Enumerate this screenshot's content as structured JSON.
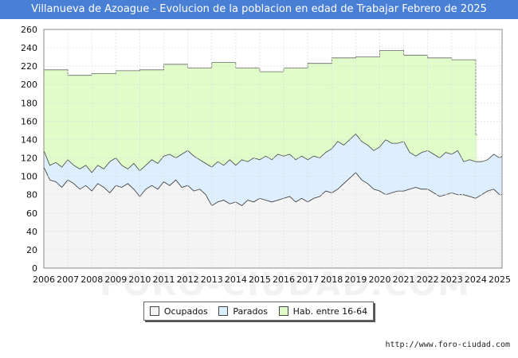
{
  "chart_data": {
    "type": "area",
    "title": "Villanueva de Azoague - Evolucion de la poblacion en edad de Trabajar Febrero de 2025",
    "xlabel": "",
    "ylabel": "",
    "x_ticks": [
      "2006",
      "2007",
      "2008",
      "2009",
      "2010",
      "2011",
      "2012",
      "2013",
      "2014",
      "2015",
      "2016",
      "2017",
      "2018",
      "2019",
      "2020",
      "2021",
      "2022",
      "2023",
      "2024",
      "2025"
    ],
    "xlim": [
      2006,
      2025.1
    ],
    "ylim": [
      0,
      260
    ],
    "y_ticks": [
      0,
      20,
      40,
      60,
      80,
      100,
      120,
      140,
      160,
      180,
      200,
      220,
      240,
      260
    ],
    "grid": true,
    "series": [
      {
        "name": "Hab. entre 16-64",
        "color": "#e0fcc8",
        "line_color": "#666666",
        "step": true,
        "x": [
          2006,
          2007,
          2008,
          2009,
          2010,
          2011,
          2012,
          2013,
          2014,
          2015,
          2016,
          2017,
          2018,
          2019,
          2020,
          2021,
          2022,
          2023,
          2024
        ],
        "values": [
          216,
          210,
          212,
          215,
          216,
          222,
          218,
          224,
          218,
          214,
          218,
          223,
          229,
          230,
          237,
          232,
          229,
          227,
          145
        ]
      },
      {
        "name": "Parados",
        "color": "#ddeeff",
        "line_color": "#444444",
        "x": [
          2006,
          2006.25,
          2006.5,
          2006.75,
          2007,
          2007.25,
          2007.5,
          2007.75,
          2008,
          2008.25,
          2008.5,
          2008.75,
          2009,
          2009.25,
          2009.5,
          2009.75,
          2010,
          2010.25,
          2010.5,
          2010.75,
          2011,
          2011.25,
          2011.5,
          2011.75,
          2012,
          2012.25,
          2012.5,
          2012.75,
          2013,
          2013.25,
          2013.5,
          2013.75,
          2014,
          2014.25,
          2014.5,
          2014.75,
          2015,
          2015.25,
          2015.5,
          2015.75,
          2016,
          2016.25,
          2016.5,
          2016.75,
          2017,
          2017.25,
          2017.5,
          2017.75,
          2018,
          2018.25,
          2018.5,
          2018.75,
          2019,
          2019.25,
          2019.5,
          2019.75,
          2020,
          2020.25,
          2020.5,
          2020.75,
          2021,
          2021.25,
          2021.5,
          2021.75,
          2022,
          2022.25,
          2022.5,
          2022.75,
          2023,
          2023.25,
          2023.5,
          2023.75,
          2024,
          2024.25,
          2024.5,
          2024.75,
          2025,
          2025.1
        ],
        "values": [
          128,
          112,
          115,
          110,
          118,
          112,
          108,
          112,
          104,
          112,
          108,
          116,
          120,
          112,
          108,
          114,
          106,
          112,
          118,
          114,
          122,
          124,
          120,
          124,
          128,
          122,
          118,
          114,
          110,
          116,
          112,
          118,
          112,
          118,
          116,
          120,
          118,
          122,
          118,
          124,
          122,
          124,
          118,
          122,
          118,
          122,
          120,
          126,
          130,
          138,
          134,
          140,
          146,
          138,
          134,
          128,
          132,
          140,
          136,
          136,
          138,
          126,
          122,
          126,
          128,
          124,
          120,
          126,
          124,
          128,
          116,
          118,
          116,
          116,
          118,
          124,
          120,
          122
        ]
      },
      {
        "name": "Ocupados",
        "color": "#f4f4f4",
        "line_color": "#333333",
        "x": [
          2006,
          2006.25,
          2006.5,
          2006.75,
          2007,
          2007.25,
          2007.5,
          2007.75,
          2008,
          2008.25,
          2008.5,
          2008.75,
          2009,
          2009.25,
          2009.5,
          2009.75,
          2010,
          2010.25,
          2010.5,
          2010.75,
          2011,
          2011.25,
          2011.5,
          2011.75,
          2012,
          2012.25,
          2012.5,
          2012.75,
          2013,
          2013.25,
          2013.5,
          2013.75,
          2014,
          2014.25,
          2014.5,
          2014.75,
          2015,
          2015.25,
          2015.5,
          2015.75,
          2016,
          2016.25,
          2016.5,
          2016.75,
          2017,
          2017.25,
          2017.5,
          2017.75,
          2018,
          2018.25,
          2018.5,
          2018.75,
          2019,
          2019.25,
          2019.5,
          2019.75,
          2020,
          2020.25,
          2020.5,
          2020.75,
          2021,
          2021.25,
          2021.5,
          2021.75,
          2022,
          2022.25,
          2022.5,
          2022.75,
          2023,
          2023.25,
          2023.5,
          2023.75,
          2024,
          2024.25,
          2024.5,
          2024.75,
          2025,
          2025.1
        ],
        "values": [
          110,
          96,
          94,
          88,
          96,
          92,
          86,
          90,
          84,
          92,
          88,
          82,
          90,
          88,
          92,
          86,
          78,
          86,
          90,
          86,
          94,
          90,
          96,
          88,
          90,
          84,
          86,
          80,
          68,
          72,
          74,
          70,
          72,
          68,
          74,
          72,
          76,
          74,
          72,
          74,
          76,
          78,
          72,
          76,
          72,
          76,
          78,
          84,
          82,
          86,
          92,
          98,
          104,
          96,
          92,
          86,
          84,
          80,
          82,
          84,
          84,
          86,
          88,
          86,
          86,
          82,
          78,
          80,
          82,
          80,
          80,
          78,
          76,
          80,
          84,
          86,
          80,
          80
        ]
      }
    ]
  },
  "legend": {
    "items": [
      {
        "label": "Ocupados",
        "color": "#f4f4f4"
      },
      {
        "label": "Parados",
        "color": "#ddeeff"
      },
      {
        "label": "Hab. entre 16-64",
        "color": "#e0fcc8"
      }
    ]
  },
  "source": "http://www.foro-ciudad.com",
  "watermark": "FORO-CIUDAD.COM"
}
